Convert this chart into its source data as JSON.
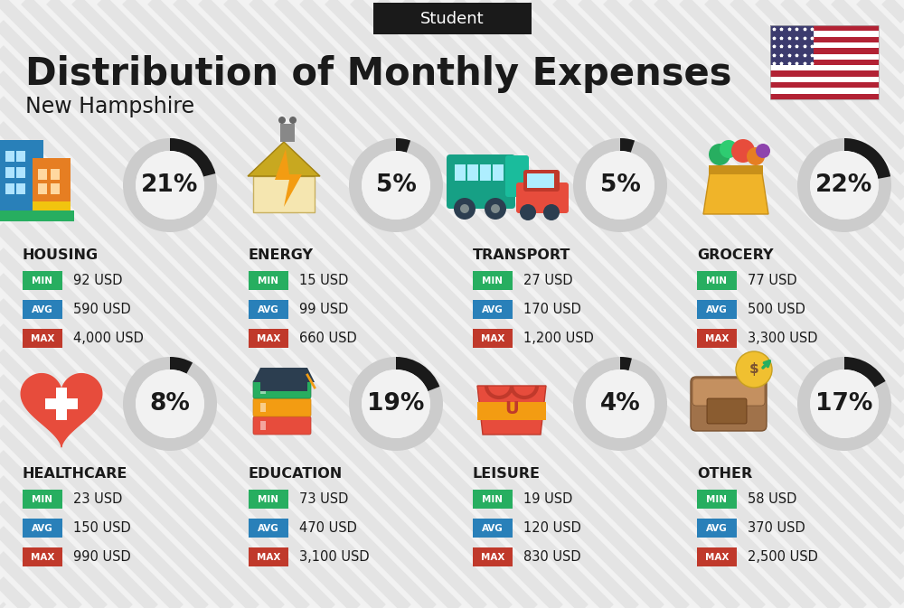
{
  "title": "Distribution of Monthly Expenses",
  "subtitle": "New Hampshire",
  "header_label": "Student",
  "bg_color": "#f2f2f2",
  "categories": [
    {
      "name": "HOUSING",
      "percent": 21,
      "min_val": "92 USD",
      "avg_val": "590 USD",
      "max_val": "4,000 USD",
      "icon": "housing",
      "row": 0,
      "col": 0
    },
    {
      "name": "ENERGY",
      "percent": 5,
      "min_val": "15 USD",
      "avg_val": "99 USD",
      "max_val": "660 USD",
      "icon": "energy",
      "row": 0,
      "col": 1
    },
    {
      "name": "TRANSPORT",
      "percent": 5,
      "min_val": "27 USD",
      "avg_val": "170 USD",
      "max_val": "1,200 USD",
      "icon": "transport",
      "row": 0,
      "col": 2
    },
    {
      "name": "GROCERY",
      "percent": 22,
      "min_val": "77 USD",
      "avg_val": "500 USD",
      "max_val": "3,300 USD",
      "icon": "grocery",
      "row": 0,
      "col": 3
    },
    {
      "name": "HEALTHCARE",
      "percent": 8,
      "min_val": "23 USD",
      "avg_val": "150 USD",
      "max_val": "990 USD",
      "icon": "healthcare",
      "row": 1,
      "col": 0
    },
    {
      "name": "EDUCATION",
      "percent": 19,
      "min_val": "73 USD",
      "avg_val": "470 USD",
      "max_val": "3,100 USD",
      "icon": "education",
      "row": 1,
      "col": 1
    },
    {
      "name": "LEISURE",
      "percent": 4,
      "min_val": "19 USD",
      "avg_val": "120 USD",
      "max_val": "830 USD",
      "icon": "leisure",
      "row": 1,
      "col": 2
    },
    {
      "name": "OTHER",
      "percent": 17,
      "min_val": "58 USD",
      "avg_val": "370 USD",
      "max_val": "2,500 USD",
      "icon": "other",
      "row": 1,
      "col": 3
    }
  ],
  "min_color": "#27ae60",
  "avg_color": "#2980b9",
  "max_color": "#c0392b",
  "text_color": "#1a1a1a",
  "circle_bg": "#cccccc",
  "circle_fg": "#1a1a1a",
  "title_fontsize": 30,
  "subtitle_fontsize": 17,
  "header_fontsize": 13,
  "category_fontsize": 11.5,
  "value_fontsize": 10.5,
  "percent_fontsize": 19,
  "badge_fontsize": 7.5
}
